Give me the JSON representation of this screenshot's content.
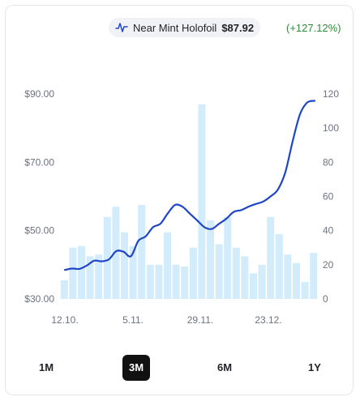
{
  "header": {
    "variant": "Near Mint Holofoil",
    "price": "$87.92",
    "change": "(+127.12%)",
    "icon": "price-line-icon"
  },
  "colors": {
    "line": "#1f46c8",
    "bars": "#d3ecfb",
    "change_positive": "#2e8b3a",
    "active_tab_bg": "#111111"
  },
  "tabs": [
    {
      "label": "1M",
      "active": false
    },
    {
      "label": "3M",
      "active": true
    },
    {
      "label": "6M",
      "active": false
    },
    {
      "label": "1Y",
      "active": false
    }
  ],
  "chart_data": {
    "type": "line",
    "x_tick_labels": [
      "12.10.",
      "5.11.",
      "29.11.",
      "23.12."
    ],
    "y_left": {
      "ticks": [
        "$30.00",
        "$50.00",
        "$70.00",
        "$90.00"
      ],
      "range": [
        30,
        90
      ]
    },
    "y_right": {
      "ticks": [
        "0",
        "20",
        "40",
        "60",
        "80",
        "100",
        "120"
      ],
      "range": [
        0,
        120
      ]
    },
    "grid": false,
    "legend": "none",
    "series": [
      {
        "type": "line",
        "axis": "left",
        "values": [
          38.5,
          38.9,
          38.8,
          39.8,
          41.2,
          41.0,
          41.6,
          44.0,
          43.8,
          42.5,
          47.0,
          48.3,
          51.0,
          52.0,
          55.0,
          57.5,
          57.0,
          55.0,
          53.0,
          51.0,
          50.5,
          52.0,
          53.5,
          55.5,
          56.0,
          57.0,
          57.8,
          58.5,
          60.0,
          62.0,
          67.0,
          76.0,
          84.0,
          87.5,
          88.0
        ]
      },
      {
        "type": "bar",
        "axis": "right",
        "values": [
          11,
          30,
          31,
          25,
          26,
          48,
          54,
          39,
          31,
          55,
          20,
          20,
          39,
          20,
          19,
          30,
          114,
          46,
          32,
          48,
          30,
          25,
          15,
          20,
          48,
          38,
          26,
          21,
          10,
          27
        ]
      }
    ]
  }
}
